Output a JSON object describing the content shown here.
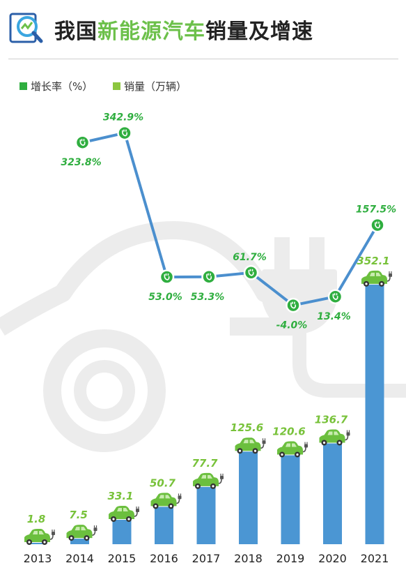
{
  "title": {
    "part1": "我国",
    "part2": "新能源汽车",
    "part3": "销量及增速"
  },
  "colors": {
    "bar": "#4b96d3",
    "line": "#4b8fce",
    "marker": "#2fae3f",
    "sales_label": "#78c23a",
    "rate_label": "#2fae3f",
    "car_icon": "#6bbf3e",
    "watermark": "#ececec"
  },
  "chart_data": {
    "type": "bar+line",
    "categories": [
      "2013",
      "2014",
      "2015",
      "2016",
      "2017",
      "2018",
      "2019",
      "2020",
      "2021"
    ],
    "legend_position": "top-left",
    "series": [
      {
        "name": "增长率（%）",
        "type": "line",
        "values": [
          null,
          323.8,
          342.9,
          53.0,
          53.3,
          61.7,
          -4.0,
          13.4,
          157.5
        ],
        "labels": [
          "",
          "323.8%",
          "342.9%",
          "53.0%",
          "53.3%",
          "61.7%",
          "-4.0%",
          "13.4%",
          "157.5%"
        ]
      },
      {
        "name": "销量（万辆）",
        "type": "bar",
        "values": [
          1.8,
          7.5,
          33.1,
          50.7,
          77.7,
          125.6,
          120.6,
          136.7,
          352.1
        ],
        "labels": [
          "1.8",
          "7.5",
          "33.1",
          "50.7",
          "77.7",
          "125.6",
          "120.6",
          "136.7",
          "352.1"
        ]
      }
    ]
  }
}
